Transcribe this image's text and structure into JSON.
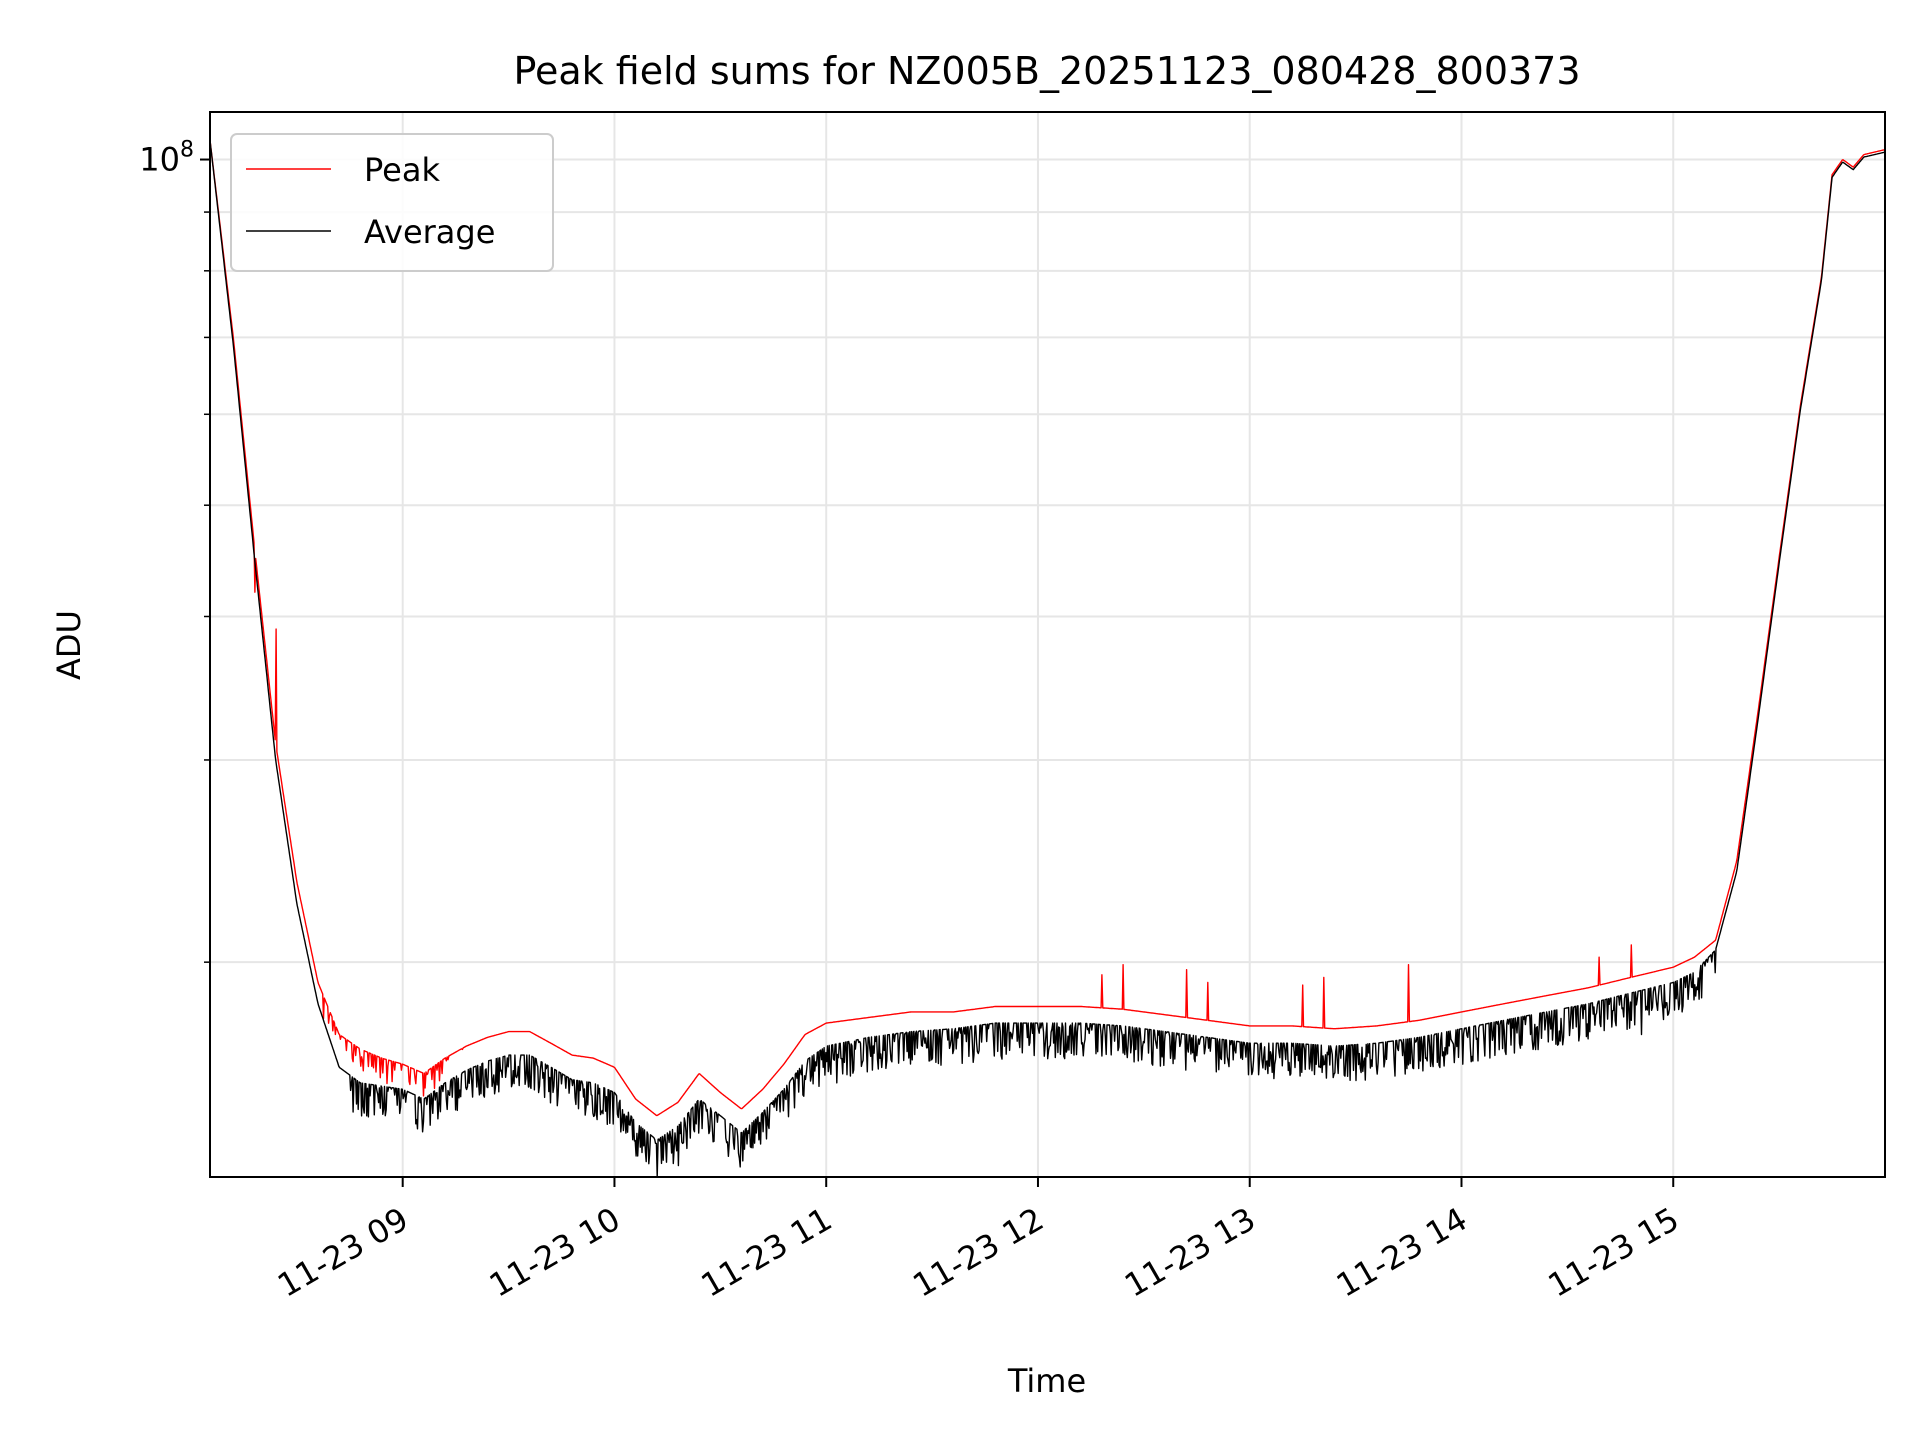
{
  "chart_data": {
    "type": "line",
    "title": "Peak field sums for NZ005B_20251123_080428_800373",
    "xlabel": "Time",
    "ylabel": "ADU",
    "yscale": "log",
    "grid": true,
    "legend_position": "top-left",
    "x_unit": "hours since 11-23 00:00",
    "xlim": [
      8.09,
      16.0
    ],
    "ylim": [
      13000000,
      110000000
    ],
    "x_ticks": [
      9,
      10,
      11,
      12,
      13,
      14,
      15
    ],
    "x_tick_labels": [
      "11-23 09",
      "11-23 10",
      "11-23 11",
      "11-23 12",
      "11-23 13",
      "11-23 14",
      "11-23 15"
    ],
    "y_major_ticks": [
      100000000
    ],
    "y_major_tick_labels": [
      "10"
    ],
    "y_major_tick_exponents": [
      "8"
    ],
    "y_minor_ticks": [
      20000000,
      30000000,
      40000000,
      50000000,
      60000000,
      70000000,
      80000000,
      90000000
    ],
    "series": [
      {
        "name": "Peak",
        "color": "#ff0000",
        "x": [
          8.09,
          8.2,
          8.3,
          8.4,
          8.5,
          8.6,
          8.7,
          8.8,
          8.9,
          9.0,
          9.1,
          9.2,
          9.3,
          9.4,
          9.5,
          9.6,
          9.7,
          9.8,
          9.9,
          10.0,
          10.1,
          10.2,
          10.3,
          10.4,
          10.5,
          10.6,
          10.7,
          10.8,
          10.9,
          11.0,
          11.2,
          11.4,
          11.6,
          11.8,
          12.0,
          12.2,
          12.4,
          12.6,
          12.8,
          13.0,
          13.2,
          13.4,
          13.6,
          13.8,
          14.0,
          14.2,
          14.4,
          14.6,
          14.8,
          15.0,
          15.1,
          15.2,
          15.3,
          15.4,
          15.5,
          15.6,
          15.7,
          15.75,
          15.8,
          15.85,
          15.9,
          16.0
        ],
        "values": [
          104000000,
          70000000,
          46000000,
          31000000,
          23500000,
          19200000,
          17300000,
          16800000,
          16500000,
          16300000,
          16000000,
          16500000,
          16900000,
          17200000,
          17400000,
          17400000,
          17000000,
          16600000,
          16500000,
          16200000,
          15200000,
          14700000,
          15100000,
          16000000,
          15400000,
          14900000,
          15500000,
          16300000,
          17300000,
          17700000,
          17900000,
          18100000,
          18100000,
          18300000,
          18300000,
          18300000,
          18200000,
          18000000,
          17800000,
          17600000,
          17600000,
          17500000,
          17600000,
          17800000,
          18100000,
          18400000,
          18700000,
          19000000,
          19400000,
          19800000,
          20200000,
          20900000,
          24500000,
          33000000,
          45000000,
          61000000,
          79000000,
          97000000,
          100000000,
          98500000,
          101000000,
          102000000
        ],
        "spikes": [
          [
            8.3,
            42000000
          ],
          [
            8.4,
            39000000
          ],
          [
            12.3,
            19500000
          ],
          [
            12.4,
            19900000
          ],
          [
            12.7,
            19700000
          ],
          [
            12.8,
            19200000
          ],
          [
            13.25,
            19100000
          ],
          [
            13.35,
            19400000
          ],
          [
            13.75,
            19900000
          ],
          [
            14.65,
            20200000
          ],
          [
            14.8,
            20700000
          ]
        ]
      },
      {
        "name": "Average",
        "color": "#000000",
        "x": [
          8.09,
          8.2,
          8.3,
          8.4,
          8.5,
          8.6,
          8.7,
          8.8,
          8.9,
          9.0,
          9.1,
          9.2,
          9.3,
          9.4,
          9.5,
          9.6,
          9.7,
          9.8,
          9.9,
          10.0,
          10.1,
          10.2,
          10.3,
          10.4,
          10.5,
          10.6,
          10.7,
          10.8,
          10.9,
          11.0,
          11.2,
          11.4,
          11.6,
          11.8,
          12.0,
          12.2,
          12.4,
          12.6,
          12.8,
          13.0,
          13.2,
          13.4,
          13.6,
          13.8,
          14.0,
          14.2,
          14.4,
          14.6,
          14.8,
          15.0,
          15.1,
          15.2,
          15.3,
          15.4,
          15.5,
          15.6,
          15.7,
          15.75,
          15.8,
          15.85,
          15.9,
          16.0
        ],
        "values": [
          104000000,
          69000000,
          45000000,
          30000000,
          22500000,
          18400000,
          16200000,
          15700000,
          15600000,
          15500000,
          15200000,
          15700000,
          16100000,
          16400000,
          16600000,
          16600000,
          16200000,
          15800000,
          15700000,
          15400000,
          14500000,
          14000000,
          14400000,
          15200000,
          14700000,
          14200000,
          14800000,
          15500000,
          16400000,
          16900000,
          17200000,
          17400000,
          17500000,
          17700000,
          17700000,
          17700000,
          17600000,
          17400000,
          17200000,
          17000000,
          17000000,
          16900000,
          17000000,
          17200000,
          17500000,
          17800000,
          18100000,
          18400000,
          18800000,
          19200000,
          19600000,
          20500000,
          24000000,
          32500000,
          44500000,
          60500000,
          78500000,
          96500000,
          99500000,
          98000000,
          100500000,
          101500000
        ],
        "dips": [
          [
            10.2,
            13000000
          ],
          [
            10.3,
            13300000
          ],
          [
            11.05,
            15700000
          ],
          [
            12.65,
            17000000
          ],
          [
            14.8,
            17800000
          ],
          [
            14.85,
            17300000
          ]
        ]
      }
    ]
  }
}
